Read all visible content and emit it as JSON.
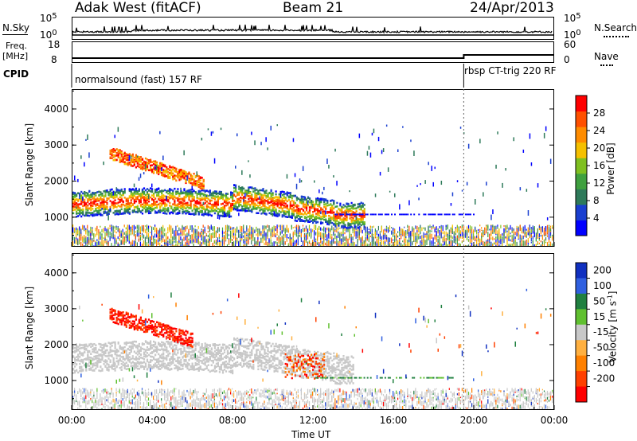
{
  "header": {
    "station": "Adak West (fitACF)",
    "beam": "Beam 21",
    "date": "24/Apr/2013"
  },
  "nsky_panel": {
    "left_label": "N.Sky",
    "right_label": "N.Search",
    "left_ticks": [
      "10^5",
      "10^0"
    ],
    "right_ticks": [
      "10^5",
      "10^0"
    ]
  },
  "freq_panel": {
    "left_label_top": "Freq.",
    "left_label_unit": "[MHz]",
    "right_label": "Nave",
    "left_ticks": [
      "18",
      "8"
    ],
    "right_ticks": [
      "60",
      "0"
    ]
  },
  "cpid_panel": {
    "label": "CPID",
    "mode_1": "normalsound (fast) 157 RF",
    "mode_2": "rbsp CT-trig 220 RF"
  },
  "chart_data": [
    {
      "type": "heatmap",
      "panel": "power",
      "ylabel": "Slant Range [km]",
      "xlabel": "Time UT",
      "x_ticks": [
        "00:00",
        "04:00",
        "08:00",
        "12:00",
        "16:00",
        "20:00",
        "00:00"
      ],
      "x_range_hours": [
        0,
        24
      ],
      "y_ticks": [
        1000,
        2000,
        3000,
        4000
      ],
      "y_range_km": [
        180,
        4550
      ],
      "colorbar_label": "Power [dB]",
      "colorbar_ticks": [
        28,
        24,
        20,
        16,
        12,
        8,
        4
      ],
      "colorbar_range": [
        0,
        32
      ],
      "colors": [
        "#0000ff",
        "#1a3fd0",
        "#2e7a5a",
        "#3fa03f",
        "#7fc020",
        "#f5c000",
        "#ff8c00",
        "#ff5000",
        "#ff0000"
      ],
      "features": [
        {
          "name": "main-band",
          "hours": [
            0,
            14
          ],
          "range_km": [
            1100,
            1800
          ]
        },
        {
          "name": "upper-band",
          "hours": [
            2,
            6
          ],
          "range_km": [
            2000,
            2900
          ]
        },
        {
          "name": "ground-scatter",
          "hours": [
            0,
            24
          ],
          "range_km": [
            200,
            900
          ]
        }
      ]
    },
    {
      "type": "heatmap",
      "panel": "velocity",
      "ylabel": "Slant Range [km]",
      "xlabel": "Time UT",
      "x_ticks": [
        "00:00",
        "04:00",
        "08:00",
        "12:00",
        "16:00",
        "20:00",
        "00:00"
      ],
      "x_range_hours": [
        0,
        24
      ],
      "y_ticks": [
        1000,
        2000,
        3000,
        4000
      ],
      "y_range_km": [
        180,
        4550
      ],
      "colorbar_label": "Velocity [m s^-1]",
      "colorbar_ticks": [
        "200",
        "100",
        "50",
        "15",
        "-15",
        "-50",
        "-100",
        "-200"
      ],
      "colors": [
        "#1030c0",
        "#3060e0",
        "#208040",
        "#60c030",
        "#c8c8c8",
        "#ffb040",
        "#ff8000",
        "#ff4000",
        "#ff0000"
      ],
      "features": [
        {
          "name": "red-patch",
          "hours": [
            2,
            6
          ],
          "range_km": [
            2100,
            3000
          ]
        },
        {
          "name": "grey-band",
          "hours": [
            0,
            14
          ],
          "range_km": [
            1200,
            2200
          ]
        }
      ]
    }
  ]
}
